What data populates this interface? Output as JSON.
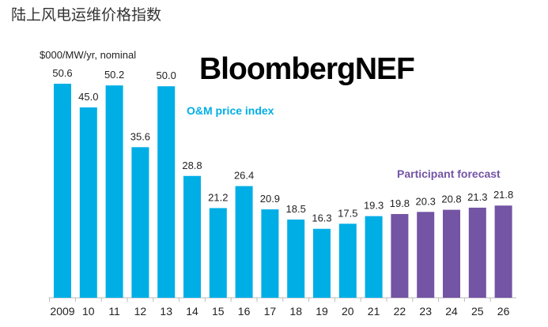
{
  "page_title": "陆上风电运维价格指数",
  "brand": "BloombergNEF",
  "chart_data": {
    "type": "bar",
    "ylabel": "$000/MW/yr, nominal",
    "categories": [
      "2009",
      "10",
      "11",
      "12",
      "13",
      "14",
      "15",
      "16",
      "17",
      "18",
      "19",
      "20",
      "21",
      "22",
      "23",
      "24",
      "25",
      "26"
    ],
    "values": [
      50.6,
      45.0,
      50.2,
      35.6,
      50.0,
      28.8,
      21.2,
      26.4,
      20.9,
      18.5,
      16.3,
      17.5,
      19.3,
      19.8,
      20.3,
      20.8,
      21.3,
      21.8
    ],
    "value_labels": [
      "50.6",
      "45.0",
      "50.2",
      "35.6",
      "50.0",
      "28.8",
      "21.2",
      "26.4",
      "20.9",
      "18.5",
      "16.3",
      "17.5",
      "19.3",
      "19.8",
      "20.3",
      "20.8",
      "21.3",
      "21.8"
    ],
    "series": [
      {
        "name": "O&M price index",
        "range": [
          "2009",
          "21"
        ],
        "color": "#00AEE6"
      },
      {
        "name": "Participant forecast",
        "range": [
          "22",
          "26"
        ],
        "color": "#7454A4"
      }
    ],
    "ylim": [
      0,
      55
    ],
    "grid": false
  }
}
